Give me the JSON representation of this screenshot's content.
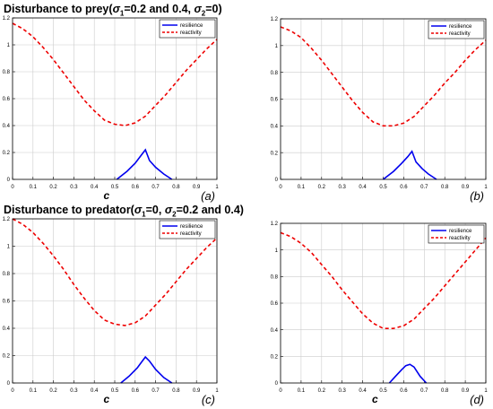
{
  "titles": {
    "top": {
      "pre": "Disturbance to prey(",
      "s1": "σ",
      "s1sub": "1",
      "mid": "=0.2 and 0.4, ",
      "s2": "σ",
      "s2sub": "2",
      "post": "=0)"
    },
    "bottom": {
      "pre": "Disturbance to predator(",
      "s1": "σ",
      "s1sub": "1",
      "mid": "=0, ",
      "s2": "σ",
      "s2sub": "2",
      "post": "=0.2 and 0.4)"
    }
  },
  "colors": {
    "resilience": "#0000ee",
    "reactivity": "#ee0000",
    "grid": "#cccccc",
    "axis": "#000000"
  },
  "chart_data": [
    {
      "type": "line",
      "panel_label": "(a)",
      "xlabel": "c",
      "ylabel": "",
      "xlim": [
        0,
        1
      ],
      "ylim": [
        0,
        1.2
      ],
      "grid": true,
      "legend": "top-right",
      "xticks": [
        "0",
        "0.1",
        "0.2",
        "0.3",
        "0.4",
        "0.5",
        "0.6",
        "0.7",
        "0.8",
        "0.9",
        "1"
      ],
      "yticks": [
        "0",
        "0.2",
        "0.4",
        "0.6",
        "0.8",
        "1",
        "1.2"
      ],
      "series": [
        {
          "name": "resilience",
          "style": "solid",
          "x": [
            0.51,
            0.56,
            0.6,
            0.63,
            0.65,
            0.67,
            0.7,
            0.74,
            0.78
          ],
          "y": [
            0,
            0.06,
            0.12,
            0.18,
            0.22,
            0.14,
            0.09,
            0.04,
            0
          ]
        },
        {
          "name": "reactivity",
          "style": "dashed",
          "x": [
            0,
            0.05,
            0.1,
            0.15,
            0.2,
            0.25,
            0.3,
            0.35,
            0.4,
            0.45,
            0.5,
            0.55,
            0.6,
            0.65,
            0.7,
            0.75,
            0.8,
            0.85,
            0.9,
            0.95,
            1
          ],
          "y": [
            1.16,
            1.12,
            1.06,
            0.98,
            0.89,
            0.79,
            0.69,
            0.59,
            0.51,
            0.44,
            0.41,
            0.4,
            0.42,
            0.47,
            0.55,
            0.63,
            0.72,
            0.81,
            0.89,
            0.97,
            1.04
          ]
        }
      ]
    },
    {
      "type": "line",
      "panel_label": "(b)",
      "xlabel": "",
      "ylabel": "",
      "xlim": [
        0,
        1
      ],
      "ylim": [
        0,
        1.2
      ],
      "grid": true,
      "legend": "top-right",
      "xticks": [
        "0",
        "0.1",
        "0.2",
        "0.3",
        "0.4",
        "0.5",
        "0.6",
        "0.7",
        "0.8",
        "0.9",
        "1"
      ],
      "yticks": [
        "0",
        "0.2",
        "0.4",
        "0.6",
        "0.8",
        "1",
        "1.2"
      ],
      "series": [
        {
          "name": "resilience",
          "style": "solid",
          "x": [
            0.5,
            0.55,
            0.59,
            0.62,
            0.64,
            0.66,
            0.69,
            0.72,
            0.76
          ],
          "y": [
            0,
            0.06,
            0.12,
            0.17,
            0.21,
            0.13,
            0.08,
            0.04,
            0
          ]
        },
        {
          "name": "reactivity",
          "style": "dashed",
          "x": [
            0,
            0.05,
            0.1,
            0.15,
            0.2,
            0.25,
            0.3,
            0.35,
            0.4,
            0.45,
            0.5,
            0.55,
            0.6,
            0.65,
            0.7,
            0.75,
            0.8,
            0.85,
            0.9,
            0.95,
            1
          ],
          "y": [
            1.14,
            1.11,
            1.06,
            0.98,
            0.89,
            0.79,
            0.69,
            0.59,
            0.5,
            0.43,
            0.4,
            0.4,
            0.42,
            0.47,
            0.55,
            0.63,
            0.72,
            0.8,
            0.89,
            0.97,
            1.04
          ]
        }
      ]
    },
    {
      "type": "line",
      "panel_label": "(c)",
      "xlabel": "c",
      "ylabel": "",
      "xlim": [
        0,
        1
      ],
      "ylim": [
        0,
        1.2
      ],
      "grid": true,
      "legend": "top-right",
      "xticks": [
        "0",
        "0.1",
        "0.2",
        "0.3",
        "0.4",
        "0.5",
        "0.6",
        "0.7",
        "0.8",
        "0.9",
        "1"
      ],
      "yticks": [
        "0",
        "0.2",
        "0.4",
        "0.6",
        "0.8",
        "1",
        "1.2"
      ],
      "series": [
        {
          "name": "resilience",
          "style": "solid",
          "x": [
            0.53,
            0.57,
            0.61,
            0.63,
            0.65,
            0.67,
            0.7,
            0.74,
            0.78
          ],
          "y": [
            0,
            0.05,
            0.11,
            0.15,
            0.19,
            0.16,
            0.1,
            0.04,
            0
          ]
        },
        {
          "name": "reactivity",
          "style": "dashed",
          "x": [
            0,
            0.05,
            0.1,
            0.15,
            0.2,
            0.25,
            0.3,
            0.35,
            0.4,
            0.45,
            0.5,
            0.55,
            0.6,
            0.65,
            0.7,
            0.75,
            0.8,
            0.85,
            0.9,
            0.95,
            1
          ],
          "y": [
            1.2,
            1.16,
            1.1,
            1.02,
            0.93,
            0.83,
            0.72,
            0.62,
            0.53,
            0.46,
            0.43,
            0.42,
            0.44,
            0.49,
            0.57,
            0.65,
            0.74,
            0.83,
            0.91,
            0.99,
            1.06
          ]
        }
      ]
    },
    {
      "type": "line",
      "panel_label": "(d)",
      "xlabel": "c",
      "ylabel": "",
      "xlim": [
        0,
        1
      ],
      "ylim": [
        0,
        1.2
      ],
      "grid": true,
      "legend": "top-right",
      "xticks": [
        "0",
        "0.1",
        "0.2",
        "0.3",
        "0.4",
        "0.5",
        "0.6",
        "0.7",
        "0.8",
        "0.9",
        "1"
      ],
      "yticks": [
        "0",
        "0.2",
        "0.4",
        "0.6",
        "0.8",
        "1",
        "1.2"
      ],
      "series": [
        {
          "name": "resilience",
          "style": "solid",
          "x": [
            0.53,
            0.56,
            0.59,
            0.61,
            0.63,
            0.65,
            0.68,
            0.71
          ],
          "y": [
            0,
            0.05,
            0.1,
            0.13,
            0.14,
            0.12,
            0.05,
            0
          ]
        },
        {
          "name": "reactivity",
          "style": "dashed",
          "x": [
            0,
            0.05,
            0.1,
            0.15,
            0.2,
            0.25,
            0.3,
            0.35,
            0.4,
            0.45,
            0.5,
            0.55,
            0.6,
            0.65,
            0.7,
            0.75,
            0.8,
            0.85,
            0.9,
            0.95,
            1
          ],
          "y": [
            1.13,
            1.1,
            1.05,
            0.98,
            0.89,
            0.8,
            0.7,
            0.61,
            0.52,
            0.45,
            0.41,
            0.41,
            0.43,
            0.48,
            0.56,
            0.64,
            0.73,
            0.82,
            0.91,
            1.0,
            1.09
          ]
        }
      ]
    }
  ]
}
